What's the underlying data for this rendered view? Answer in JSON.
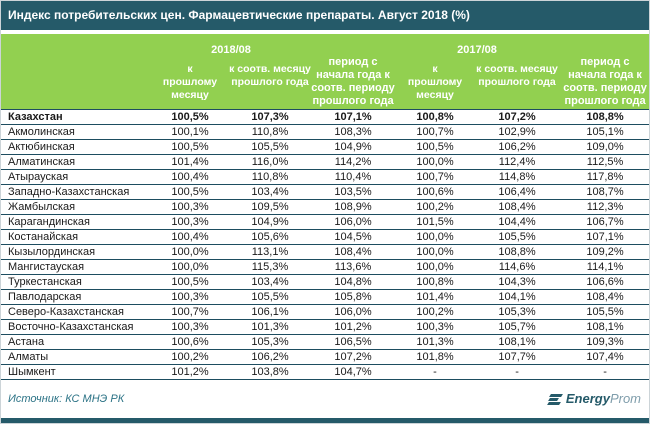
{
  "title": "Индекс потребительских цен. Фармацевтические препараты. Август 2018 (%)",
  "source": "Источник: КС МНЭ РК",
  "logo": {
    "bold": "Energy",
    "light": "Prom"
  },
  "colors": {
    "title_bar": "#255a69",
    "header_green": "#92d050",
    "row_separator": "#1d4d60",
    "source_text": "#2c7386",
    "logo_light_text": "#7f9dab"
  },
  "chart_data": {
    "type": "table",
    "title": "Индекс потребительских цен. Фармацевтические препараты. Август 2018 (%)",
    "column_groups": [
      "2018/08",
      "2017/08"
    ],
    "columns": [
      "",
      "к прошлому месяцу",
      "к соотв. месяцу прошлого года",
      "период с начала года к соотв. периоду прошлого года",
      "к прошлому месяцу",
      "к соотв. месяцу прошлого года",
      "период с начала года к соотв. периоду прошлого года"
    ],
    "rows": [
      [
        "Казахстан",
        "100,5%",
        "107,3%",
        "107,1%",
        "100,8%",
        "107,2%",
        "108,8%"
      ],
      [
        "Акмолинская",
        "100,1%",
        "110,8%",
        "108,3%",
        "100,7%",
        "102,9%",
        "105,1%"
      ],
      [
        "Актюбинская",
        "100,5%",
        "105,5%",
        "104,9%",
        "100,5%",
        "106,2%",
        "109,0%"
      ],
      [
        "Алматинская",
        "101,4%",
        "116,0%",
        "114,2%",
        "100,0%",
        "112,4%",
        "112,5%"
      ],
      [
        "Атырауская",
        "100,4%",
        "110,8%",
        "110,4%",
        "100,7%",
        "114,8%",
        "117,8%"
      ],
      [
        "Западно-Казахстанская",
        "100,5%",
        "103,4%",
        "103,5%",
        "100,6%",
        "106,4%",
        "108,7%"
      ],
      [
        "Жамбылская",
        "100,3%",
        "109,5%",
        "108,9%",
        "100,2%",
        "108,4%",
        "112,3%"
      ],
      [
        "Карагандинская",
        "100,3%",
        "104,9%",
        "106,0%",
        "101,5%",
        "104,4%",
        "106,7%"
      ],
      [
        "Костанайская",
        "100,4%",
        "105,6%",
        "104,5%",
        "100,0%",
        "105,5%",
        "107,1%"
      ],
      [
        "Кызылординская",
        "100,0%",
        "113,1%",
        "108,4%",
        "100,0%",
        "108,8%",
        "109,2%"
      ],
      [
        "Мангистауская",
        "100,0%",
        "115,3%",
        "113,6%",
        "100,0%",
        "114,6%",
        "114,1%"
      ],
      [
        "Туркестанская",
        "100,5%",
        "103,4%",
        "104,8%",
        "100,8%",
        "104,3%",
        "106,6%"
      ],
      [
        "Павлодарская",
        "100,3%",
        "105,5%",
        "105,8%",
        "101,4%",
        "104,1%",
        "108,4%"
      ],
      [
        "Северо-Казахстанская",
        "100,7%",
        "106,1%",
        "106,0%",
        "100,2%",
        "105,3%",
        "105,5%"
      ],
      [
        "Восточно-Казахстанская",
        "100,3%",
        "101,3%",
        "101,2%",
        "100,3%",
        "105,7%",
        "108,1%"
      ],
      [
        "Астана",
        "100,6%",
        "105,3%",
        "106,5%",
        "101,3%",
        "108,1%",
        "109,3%"
      ],
      [
        "Алматы",
        "100,2%",
        "106,2%",
        "107,2%",
        "101,8%",
        "107,7%",
        "107,4%"
      ],
      [
        "Шымкент",
        "101,2%",
        "103,8%",
        "104,7%",
        "-",
        "-",
        "-"
      ]
    ]
  }
}
